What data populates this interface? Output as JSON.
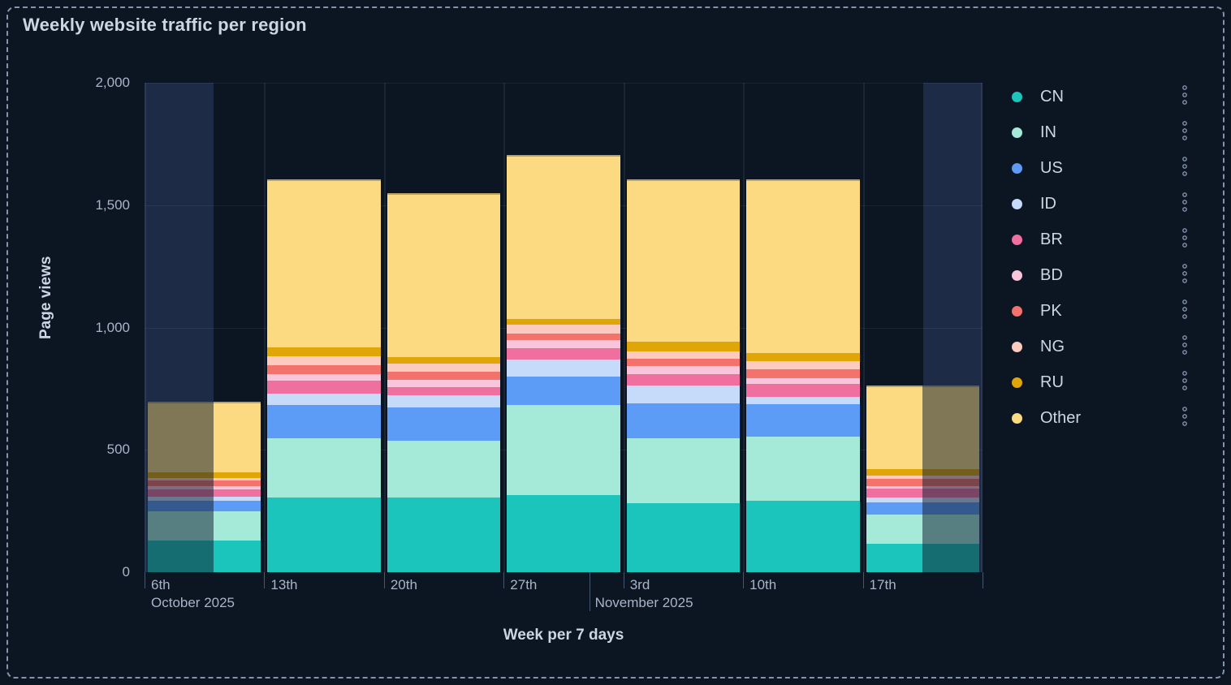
{
  "panel": {
    "title": "Weekly website traffic per region"
  },
  "y_axis": {
    "title": "Page views",
    "tick_labels": [
      "0",
      "500",
      "1,000",
      "1,500",
      "2,000"
    ],
    "tick_values": [
      0,
      500,
      1000,
      1500,
      2000
    ],
    "max": 2000
  },
  "x_axis": {
    "title": "Week per 7 days",
    "tick_labels": [
      "6th",
      "13th",
      "20th",
      "27th",
      "3rd",
      "10th",
      "17th"
    ],
    "month_labels": [
      {
        "index": 0,
        "label": "October 2025"
      },
      {
        "index": 4,
        "label": "November 2025"
      }
    ]
  },
  "colors": {
    "background": "#0c1522",
    "panel_border": "#8494ad",
    "text_primary": "#ccd5e3",
    "text_secondary": "#a9b4c9",
    "grid": "rgba(173,186,211,0.09)",
    "axis_tick": "#46566f",
    "out_of_range_background": "#1e2b47",
    "out_of_range_dim": "rgba(16,28,48,0.52)"
  },
  "chart_data": {
    "type": "bar",
    "stacked": true,
    "title": "Weekly website traffic per region",
    "xlabel": "Week per 7 days",
    "ylabel": "Page views",
    "ylim": [
      0,
      2000
    ],
    "yticks": [
      0,
      500,
      1000,
      1500,
      2000
    ],
    "grid": true,
    "legend_position": "right",
    "categories": [
      "6th",
      "13th",
      "20th",
      "27th",
      "3rd",
      "10th",
      "17th"
    ],
    "series": [
      {
        "name": "CN",
        "color": "#1cc5bb",
        "values": [
          129,
          304,
          304,
          315,
          282,
          293,
          116
        ]
      },
      {
        "name": "IN",
        "color": "#a5ead9",
        "values": [
          120,
          243,
          232,
          367,
          265,
          260,
          118
        ]
      },
      {
        "name": "US",
        "color": "#5c9cf6",
        "values": [
          43,
          135,
          136,
          116,
          144,
          133,
          50
        ]
      },
      {
        "name": "ID",
        "color": "#c6dbf9",
        "values": [
          17,
          47,
          50,
          70,
          71,
          31,
          20
        ]
      },
      {
        "name": "BR",
        "color": "#ef709e",
        "values": [
          30,
          53,
          35,
          48,
          49,
          52,
          38
        ]
      },
      {
        "name": "BD",
        "color": "#f9c5da",
        "values": [
          14,
          29,
          30,
          32,
          33,
          24,
          11
        ]
      },
      {
        "name": "PK",
        "color": "#f3726c",
        "values": [
          23,
          36,
          33,
          27,
          30,
          37,
          28
        ]
      },
      {
        "name": "NG",
        "color": "#fccabe",
        "values": [
          10,
          36,
          33,
          37,
          30,
          33,
          13
        ]
      },
      {
        "name": "RU",
        "color": "#e0a506",
        "values": [
          23,
          35,
          26,
          22,
          39,
          33,
          26
        ]
      },
      {
        "name": "Other",
        "color": "#fbda81",
        "values": [
          288,
          687,
          670,
          672,
          662,
          709,
          344
        ]
      }
    ],
    "totals": [
      697,
      1605,
      1549,
      1706,
      1605,
      1605,
      764
    ],
    "out_of_range": {
      "regions": [
        {
          "start_frac": 0.0,
          "end_frac": 0.082
        },
        {
          "start_frac": 0.929,
          "end_frac": 1.0
        }
      ],
      "dimmed_bars": [
        {
          "bar_index": 0,
          "side": "left",
          "fraction": 0.58
        },
        {
          "bar_index": 6,
          "side": "right",
          "fraction": 0.5
        }
      ]
    }
  },
  "legend": {
    "menu_icon": "kebab-menu-icon"
  }
}
